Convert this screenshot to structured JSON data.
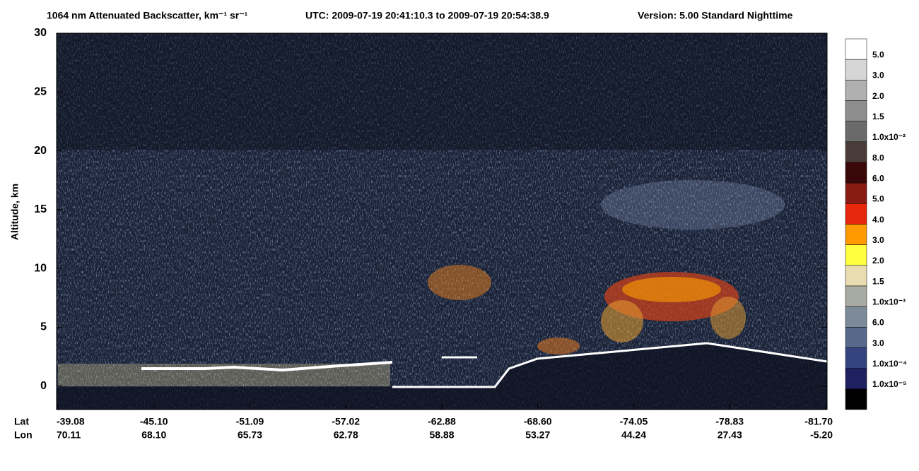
{
  "chart_data": {
    "type": "curtain",
    "title": "1064 nm Attenuated Backscatter, km⁻¹ sr⁻¹",
    "utc": "UTC:  2009-07-19 20:41:10.3  to  2009-07-19 20:54:38.9",
    "version": "Version: 5.00  Standard  Nighttime",
    "y_label": "Altitude, km",
    "ylim": [
      -2,
      30
    ],
    "yticks": [
      0,
      5,
      10,
      15,
      20,
      25,
      30
    ],
    "x_row_labels": [
      "Lat",
      "Lon"
    ],
    "lat": [
      "-39.08",
      "-45.10",
      "-51.09",
      "-57.02",
      "-62.88",
      "-68.60",
      "-74.05",
      "-78.83",
      "-81.70"
    ],
    "lon": [
      "70.11",
      "68.10",
      "65.73",
      "62.78",
      "58.88",
      "53.27",
      "44.24",
      "27.43",
      "-5.20"
    ],
    "colorbar": {
      "colors": [
        "#ffffff",
        "#d6d6d6",
        "#b0b0b0",
        "#8e8e8e",
        "#6a6a6a",
        "#4a3c38",
        "#3a0808",
        "#8a1a14",
        "#e8280c",
        "#ff9a00",
        "#ffff40",
        "#e9dcb0",
        "#a8aba2",
        "#7c8a9a",
        "#56698a",
        "#34447e",
        "#1e2060",
        "#000000"
      ],
      "labels": [
        "5.0",
        "3.0",
        "2.0",
        "1.5",
        "1.0x10⁻²",
        "8.0",
        "6.0",
        "5.0",
        "4.0",
        "3.0",
        "2.0",
        "1.5",
        "1.0x10⁻³",
        "6.0",
        "3.0",
        "1.0x10⁻⁴",
        "1.0x10⁻⁵"
      ]
    }
  }
}
